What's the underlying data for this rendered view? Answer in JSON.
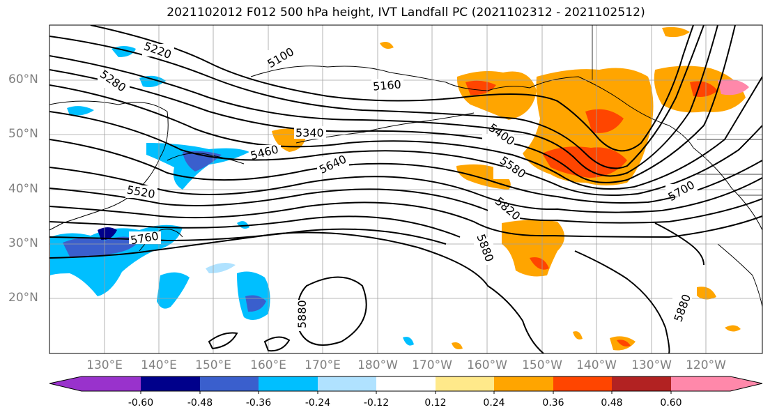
{
  "title": "2021102012 F012 500 hPa height, IVT Landfall PC (2021102312 - 2021102512)",
  "latitude_labels": [
    "60°N",
    "50°N",
    "40°N",
    "30°N",
    "20°N"
  ],
  "longitude_labels": [
    "130°E",
    "140°E",
    "150°E",
    "160°E",
    "170°E",
    "180°W",
    "170°W",
    "160°W",
    "150°W",
    "140°W",
    "130°W",
    "120°W"
  ],
  "contour_labels": [
    "5220",
    "5280",
    "5100",
    "5160",
    "5340",
    "5460",
    "5640",
    "5400",
    "5580",
    "5520",
    "5760",
    "5820",
    "5880",
    "5880",
    "5700",
    "5880"
  ],
  "colorbar": {
    "tick_labels": [
      "-0.60",
      "-0.48",
      "-0.36",
      "-0.24",
      "-0.12",
      "0.12",
      "0.24",
      "0.36",
      "0.48",
      "0.60"
    ],
    "colors": [
      "#9932cc",
      "#00008b",
      "#3a5fcd",
      "#00bfff",
      "#b0e2ff",
      "#ffffff",
      "#ffe98a",
      "#ffa500",
      "#ff4500",
      "#b22222",
      "#ff88aa"
    ]
  }
}
